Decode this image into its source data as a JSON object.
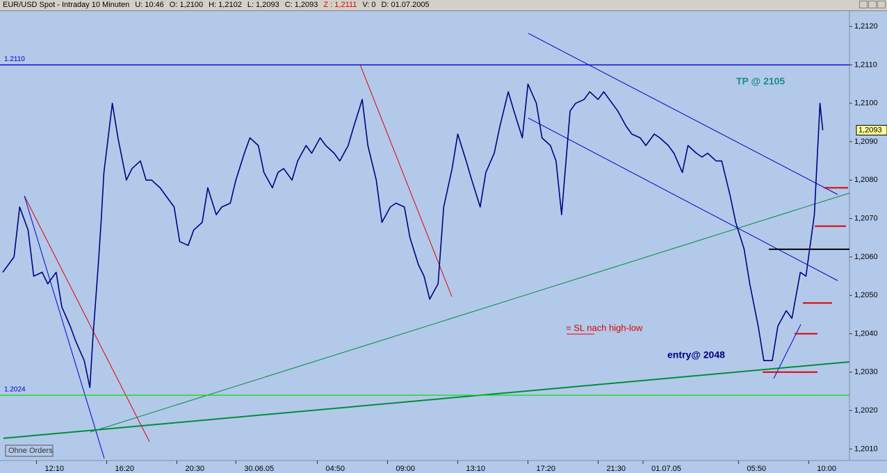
{
  "header": {
    "instrument": "EUR/USD Spot - Intraday 10 Minuten",
    "time": "U: 10:46",
    "open": "O: 1,2100",
    "high": "H: 1,2102",
    "low": "L: 1,2093",
    "close": "C: 1,2093",
    "z": "Z : 1,2111",
    "volume": "V: 0",
    "date": "D: 01.07.2005"
  },
  "orders_button": "Ohne Orders",
  "chart_data": {
    "type": "line",
    "x": [
      1,
      5,
      7,
      10,
      12,
      15,
      17,
      20,
      22,
      25,
      27,
      30,
      32,
      33,
      35,
      36,
      37,
      40,
      42,
      45,
      47,
      50,
      52,
      54,
      57,
      59,
      62,
      64,
      67,
      69,
      72,
      74,
      77,
      79,
      82,
      84,
      87,
      89,
      92,
      94,
      97,
      99,
      101,
      104,
      106,
      109,
      111,
      114,
      116,
      119,
      121,
      124,
      126,
      129,
      131,
      134,
      136,
      139,
      141,
      144,
      146,
      149,
      151,
      153,
      156,
      158,
      161,
      163,
      166,
      168,
      171,
      173,
      176,
      178,
      181,
      183,
      186,
      188,
      191,
      193,
      196,
      198,
      200,
      203,
      205,
      208,
      210,
      213,
      215,
      218,
      220,
      223,
      225,
      228,
      230,
      233,
      235,
      238,
      240,
      243,
      245,
      248,
      250,
      252,
      255,
      257,
      260,
      262,
      265,
      267,
      270,
      272,
      275,
      277,
      280,
      282,
      285,
      287,
      290,
      292,
      293
    ],
    "series": [
      {
        "color": "#000080",
        "values": [
          1.2056,
          1.206,
          1.2073,
          1.2067,
          1.2055,
          1.2056,
          1.2053,
          1.2056,
          1.2047,
          1.2042,
          1.2038,
          1.2033,
          1.2026,
          1.2038,
          1.2058,
          1.2069,
          1.2082,
          1.21,
          1.2091,
          1.208,
          1.2083,
          1.2085,
          1.208,
          1.208,
          1.2078,
          1.2076,
          1.2073,
          1.2064,
          1.2063,
          1.2067,
          1.2069,
          1.2078,
          1.2071,
          1.2073,
          1.2074,
          1.208,
          1.2087,
          1.2091,
          1.2089,
          1.2082,
          1.2078,
          1.2082,
          1.2083,
          1.208,
          1.2085,
          1.2089,
          1.2087,
          1.2091,
          1.2089,
          1.2087,
          1.2085,
          1.2089,
          1.2094,
          1.2101,
          1.2089,
          1.208,
          1.2069,
          1.2073,
          1.2074,
          1.2073,
          1.2065,
          1.2058,
          1.2055,
          1.2049,
          1.2053,
          1.2073,
          1.2083,
          1.2092,
          1.2085,
          1.208,
          1.2073,
          1.2082,
          1.2087,
          1.2094,
          1.2103,
          1.2098,
          1.2091,
          1.2105,
          1.21,
          1.2091,
          1.2089,
          1.2085,
          1.2071,
          1.2098,
          1.21,
          1.2101,
          1.2103,
          1.2101,
          1.2103,
          1.21,
          1.2098,
          1.2094,
          1.2092,
          1.2091,
          1.2089,
          1.2092,
          1.2091,
          1.2089,
          1.2087,
          1.2082,
          1.2089,
          1.2087,
          1.2086,
          1.2087,
          1.2085,
          1.2085,
          1.2076,
          1.2069,
          1.2062,
          1.2053,
          1.2042,
          1.2033,
          1.2033,
          1.2042,
          1.2046,
          1.2044,
          1.2056,
          1.2055,
          1.2071,
          1.21,
          1.2093
        ]
      }
    ],
    "xlim": [
      0,
      302.5
    ],
    "ylim": [
      1.2007,
      1.2124
    ],
    "yticks": [
      {
        "value": 1.201,
        "label": "1,2010"
      },
      {
        "value": 1.202,
        "label": "1,2020"
      },
      {
        "value": 1.203,
        "label": "1,2030"
      },
      {
        "value": 1.204,
        "label": "1,2040"
      },
      {
        "value": 1.205,
        "label": "1,2050"
      },
      {
        "value": 1.206,
        "label": "1,2060"
      },
      {
        "value": 1.207,
        "label": "1,2070"
      },
      {
        "value": 1.208,
        "label": "1,2080"
      },
      {
        "value": 1.209,
        "label": "1,2090"
      },
      {
        "value": 1.21,
        "label": "1,2100"
      },
      {
        "value": 1.211,
        "label": "1,2110"
      },
      {
        "value": 1.212,
        "label": "1,2120"
      }
    ],
    "xticks": [
      {
        "value": 13,
        "label": "12:10"
      },
      {
        "value": 38,
        "label": "16:20"
      },
      {
        "value": 63,
        "label": "20:30"
      },
      {
        "value": 84,
        "label": "30.06.05"
      },
      {
        "value": 113,
        "label": "04:50"
      },
      {
        "value": 138,
        "label": "09:00"
      },
      {
        "value": 163,
        "label": "13:10"
      },
      {
        "value": 188,
        "label": "17:20"
      },
      {
        "value": 213,
        "label": "21:30"
      },
      {
        "value": 229,
        "label": "01.07.05"
      },
      {
        "value": 263,
        "label": "05:50"
      },
      {
        "value": 288,
        "label": "10:00"
      }
    ],
    "hlines": [
      {
        "value": 1.211,
        "label": "1.2110",
        "color": "#0000cc"
      },
      {
        "value": 1.2024,
        "label": "1.2024",
        "color": "#00e000"
      }
    ],
    "levels": [
      {
        "value": 1.2078,
        "color": "#e00000"
      },
      {
        "value": 1.2068,
        "color": "#e00000"
      },
      {
        "value": 1.2062,
        "color": "#000000"
      },
      {
        "value": 1.2048,
        "color": "#e00000"
      },
      {
        "value": 1.204,
        "color": "#e00000"
      },
      {
        "value": 1.203,
        "color": "#e00000"
      }
    ],
    "last_price": {
      "value": 1.2093,
      "label": "1,2093"
    },
    "annotations": {
      "tp": "TP @ 2105",
      "sl": "= SL nach high-low",
      "entry": "entry@ 2048"
    }
  }
}
